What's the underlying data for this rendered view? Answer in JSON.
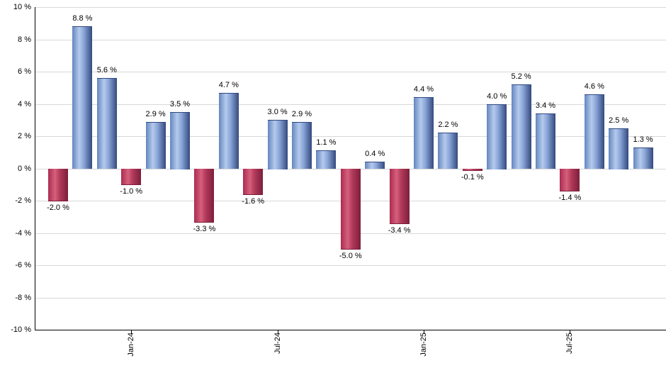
{
  "chart_data": {
    "type": "bar",
    "title": "",
    "xlabel": "",
    "ylabel": "",
    "values": [
      -2.0,
      8.8,
      5.6,
      -1.0,
      2.9,
      3.5,
      -3.3,
      4.7,
      -1.6,
      3.0,
      2.9,
      1.1,
      -5.0,
      0.4,
      -3.4,
      4.4,
      2.2,
      -0.1,
      4.0,
      5.2,
      3.4,
      -1.4,
      4.6,
      2.5,
      1.3
    ],
    "bar_labels": [
      "-2.0 %",
      "8.8 %",
      "5.6 %",
      "-1.0 %",
      "2.9 %",
      "3.5 %",
      "-3.3 %",
      "4.7 %",
      "-1.6 %",
      "3.0 %",
      "2.9 %",
      "1.1 %",
      "-5.0 %",
      "0.4 %",
      "-3.4 %",
      "4.4 %",
      "2.2 %",
      "-0.1 %",
      "4.0 %",
      "5.2 %",
      "3.4 %",
      "-1.4 %",
      "4.6 %",
      "2.5 %",
      "1.3 %"
    ],
    "x_ticks": [
      {
        "label": "Jan-24",
        "bar_index": 3
      },
      {
        "label": "Jul-24",
        "bar_index": 9
      },
      {
        "label": "Jan-25",
        "bar_index": 15
      },
      {
        "label": "Jul-25",
        "bar_index": 21
      }
    ],
    "y_tick_labels": [
      "10 %",
      "8 %",
      "6 %",
      "4 %",
      "2 %",
      "0 %",
      "-2 %",
      "-4 %",
      "-6 %",
      "-8 %",
      "-10 %"
    ],
    "y_tick_values": [
      10,
      8,
      6,
      4,
      2,
      0,
      -2,
      -4,
      -6,
      -8,
      -10
    ],
    "ylim": [
      -10,
      10
    ],
    "grid": true,
    "legend": "none",
    "colors": {
      "positive_light": "#b5caec",
      "positive_mid": "#6486bf",
      "positive_dark": "#33497e",
      "negative_light": "#d6607e",
      "negative_mid": "#aa2c50",
      "negative_dark": "#7c1e3b",
      "gridline": "#d8d8d8",
      "axis": "#000000",
      "text": "#000000"
    }
  }
}
